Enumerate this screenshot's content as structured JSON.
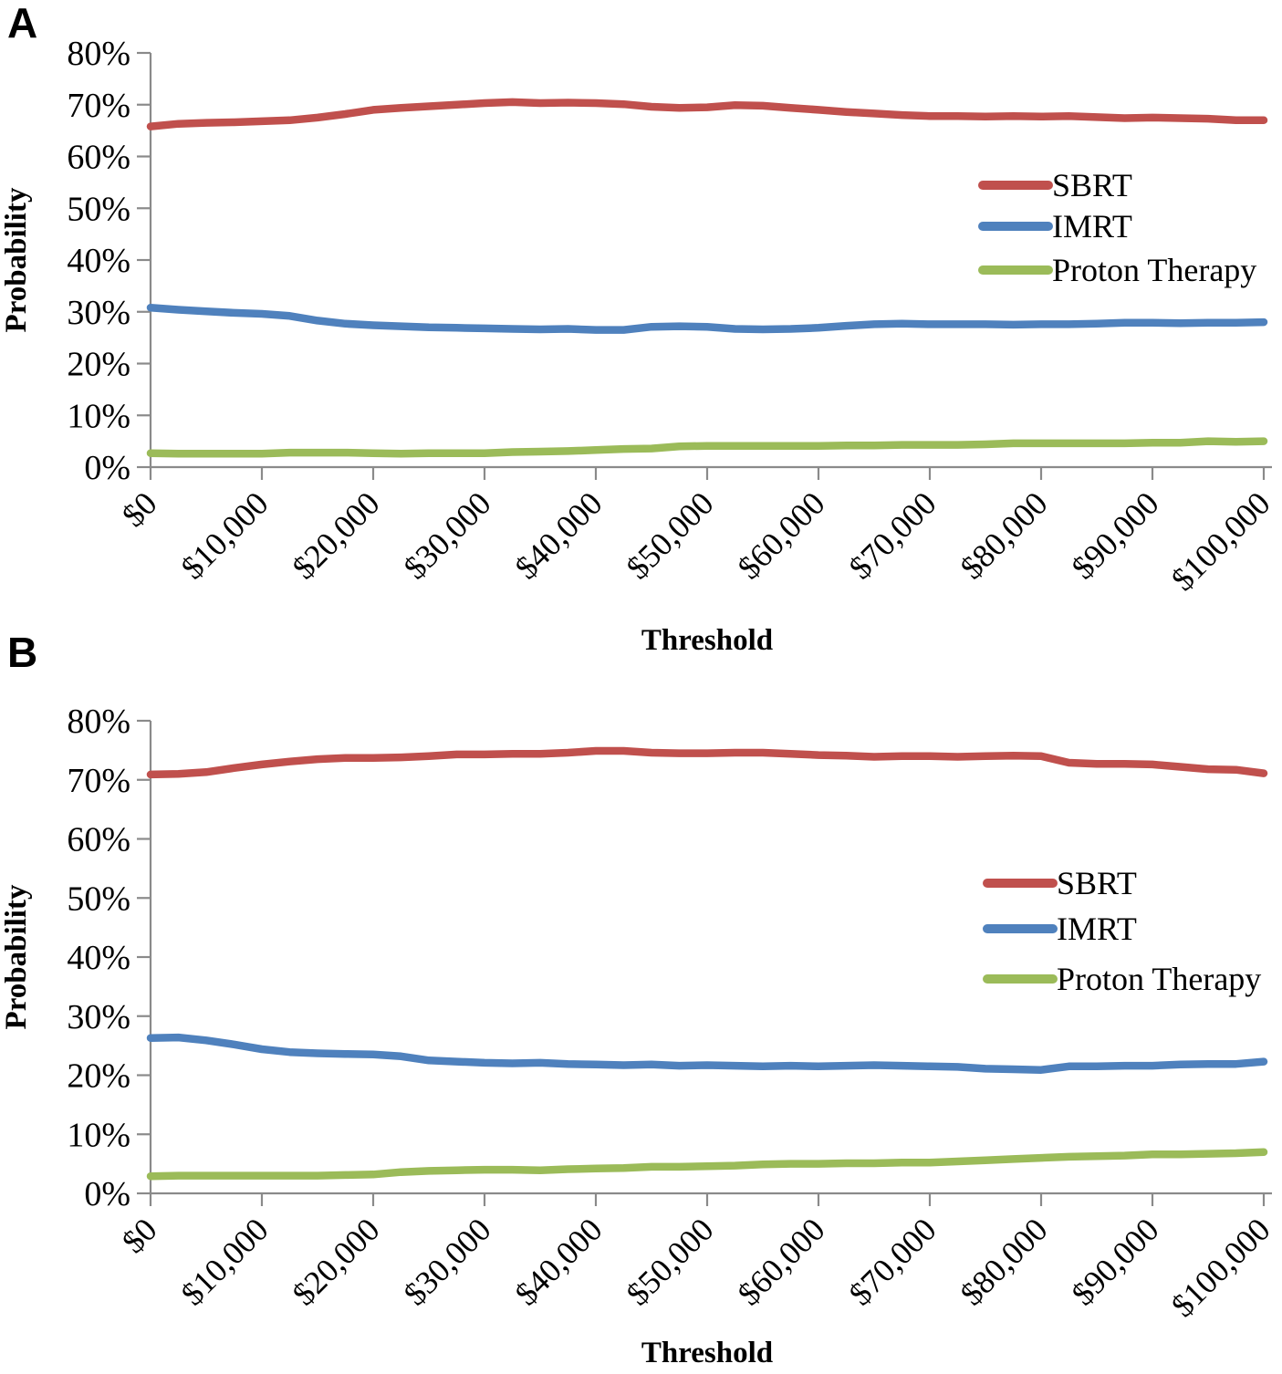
{
  "figure": {
    "panel_a_label": "A",
    "panel_b_label": "B"
  },
  "colors": {
    "sbrt": "#C0504D",
    "imrt": "#4F81BD",
    "proton": "#9BBB59",
    "axis_gray": "#8A8A8A"
  },
  "chart_data": [
    {
      "type": "line",
      "panel": "A",
      "title": "",
      "xlabel": "Threshold",
      "ylabel": "Probability",
      "xlim": [
        0,
        100000
      ],
      "ylim_percent": [
        0,
        80
      ],
      "grid": false,
      "legend_position": "right-middle",
      "y_tick_labels": [
        "80%",
        "70%",
        "60%",
        "50%",
        "40%",
        "30%",
        "20%",
        "10%",
        "0%"
      ],
      "x_tick_labels": [
        "$0",
        "$10,000",
        "$20,000",
        "$30,000",
        "$40,000",
        "$50,000",
        "$60,000",
        "$70,000",
        "$80,000",
        "$90,000",
        "$100,000"
      ],
      "x": [
        0,
        2500,
        5000,
        7500,
        10000,
        12500,
        15000,
        17500,
        20000,
        22500,
        25000,
        27500,
        30000,
        32500,
        35000,
        37500,
        40000,
        42500,
        45000,
        47500,
        50000,
        52500,
        55000,
        57500,
        60000,
        62500,
        65000,
        67500,
        70000,
        72500,
        75000,
        77500,
        80000,
        82500,
        85000,
        87500,
        90000,
        92500,
        95000,
        97500,
        100000
      ],
      "series": [
        {
          "name": "SBRT",
          "color": "#C0504D",
          "values": [
            65.8,
            66.3,
            66.5,
            66.6,
            66.8,
            67.0,
            67.5,
            68.2,
            69.0,
            69.4,
            69.7,
            70.0,
            70.3,
            70.5,
            70.3,
            70.4,
            70.3,
            70.1,
            69.6,
            69.4,
            69.5,
            69.9,
            69.8,
            69.4,
            69.0,
            68.6,
            68.3,
            68.0,
            67.8,
            67.8,
            67.7,
            67.8,
            67.7,
            67.8,
            67.6,
            67.4,
            67.5,
            67.4,
            67.3,
            67.0,
            67.0
          ]
        },
        {
          "name": "IMRT",
          "color": "#4F81BD",
          "values": [
            30.8,
            30.4,
            30.1,
            29.8,
            29.6,
            29.2,
            28.3,
            27.7,
            27.4,
            27.2,
            27.0,
            26.9,
            26.8,
            26.7,
            26.6,
            26.7,
            26.5,
            26.5,
            27.1,
            27.2,
            27.1,
            26.7,
            26.6,
            26.7,
            26.9,
            27.3,
            27.6,
            27.7,
            27.6,
            27.6,
            27.6,
            27.5,
            27.6,
            27.6,
            27.7,
            27.9,
            27.9,
            27.8,
            27.9,
            27.9,
            28.0
          ]
        },
        {
          "name": "Proton Therapy",
          "color": "#9BBB59",
          "values": [
            2.7,
            2.6,
            2.6,
            2.6,
            2.6,
            2.8,
            2.8,
            2.8,
            2.7,
            2.6,
            2.7,
            2.7,
            2.7,
            2.9,
            3.0,
            3.1,
            3.3,
            3.5,
            3.6,
            4.0,
            4.1,
            4.1,
            4.1,
            4.1,
            4.1,
            4.2,
            4.2,
            4.3,
            4.3,
            4.3,
            4.4,
            4.6,
            4.6,
            4.6,
            4.6,
            4.6,
            4.7,
            4.7,
            5.0,
            4.9,
            5.0
          ]
        }
      ]
    },
    {
      "type": "line",
      "panel": "B",
      "title": "",
      "xlabel": "Threshold",
      "ylabel": "Probability",
      "xlim": [
        0,
        100000
      ],
      "ylim_percent": [
        0,
        80
      ],
      "grid": false,
      "legend_position": "right-middle",
      "y_tick_labels": [
        "80%",
        "70%",
        "60%",
        "50%",
        "40%",
        "30%",
        "20%",
        "10%",
        "0%"
      ],
      "x_tick_labels": [
        "$0",
        "$10,000",
        "$20,000",
        "$30,000",
        "$40,000",
        "$50,000",
        "$60,000",
        "$70,000",
        "$80,000",
        "$90,000",
        "$100,000"
      ],
      "x": [
        0,
        2500,
        5000,
        7500,
        10000,
        12500,
        15000,
        17500,
        20000,
        22500,
        25000,
        27500,
        30000,
        32500,
        35000,
        37500,
        40000,
        42500,
        45000,
        47500,
        50000,
        52500,
        55000,
        57500,
        60000,
        62500,
        65000,
        67500,
        70000,
        72500,
        75000,
        77500,
        80000,
        82500,
        85000,
        87500,
        90000,
        92500,
        95000,
        97500,
        100000
      ],
      "series": [
        {
          "name": "SBRT",
          "color": "#C0504D",
          "values": [
            70.9,
            71.0,
            71.3,
            72.0,
            72.6,
            73.1,
            73.5,
            73.7,
            73.7,
            73.8,
            74.0,
            74.3,
            74.3,
            74.4,
            74.4,
            74.6,
            74.9,
            74.9,
            74.6,
            74.5,
            74.5,
            74.6,
            74.6,
            74.4,
            74.2,
            74.1,
            73.9,
            74.0,
            74.0,
            73.9,
            74.0,
            74.1,
            74.0,
            72.9,
            72.7,
            72.7,
            72.6,
            72.2,
            71.8,
            71.7,
            71.1
          ]
        },
        {
          "name": "IMRT",
          "color": "#4F81BD",
          "values": [
            26.3,
            26.4,
            25.9,
            25.2,
            24.4,
            23.9,
            23.7,
            23.6,
            23.5,
            23.2,
            22.5,
            22.3,
            22.1,
            22.0,
            22.1,
            21.9,
            21.8,
            21.7,
            21.8,
            21.6,
            21.7,
            21.6,
            21.5,
            21.6,
            21.5,
            21.6,
            21.7,
            21.6,
            21.5,
            21.4,
            21.1,
            21.0,
            20.9,
            21.5,
            21.5,
            21.6,
            21.6,
            21.8,
            21.9,
            21.9,
            22.3
          ]
        },
        {
          "name": "Proton Therapy",
          "color": "#9BBB59",
          "values": [
            2.9,
            3.0,
            3.0,
            3.0,
            3.0,
            3.0,
            3.0,
            3.1,
            3.2,
            3.6,
            3.8,
            3.9,
            4.0,
            4.0,
            3.9,
            4.1,
            4.2,
            4.3,
            4.5,
            4.5,
            4.6,
            4.7,
            4.9,
            5.0,
            5.0,
            5.1,
            5.1,
            5.2,
            5.2,
            5.4,
            5.6,
            5.8,
            6.0,
            6.2,
            6.3,
            6.4,
            6.6,
            6.6,
            6.7,
            6.8,
            7.0
          ]
        }
      ]
    }
  ]
}
